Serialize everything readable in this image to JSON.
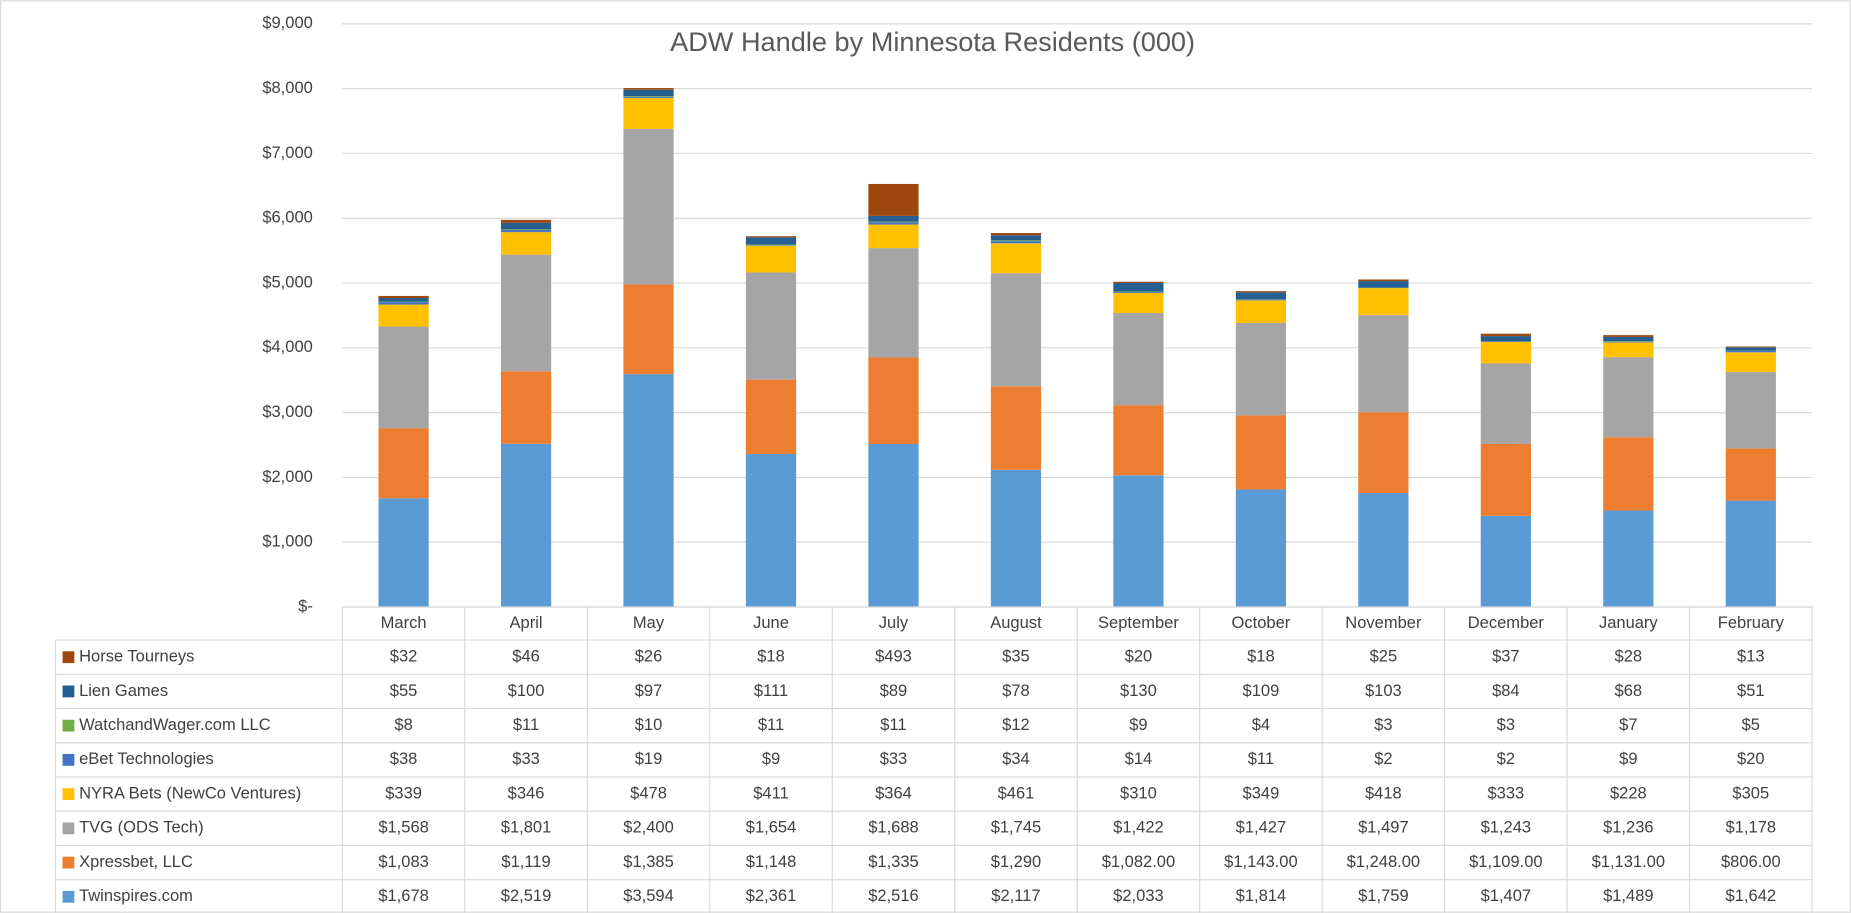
{
  "chart_data": {
    "type": "bar",
    "stacked": true,
    "title": "ADW Handle by Minnesota Residents (000)",
    "categories": [
      "March",
      "April",
      "May",
      "June",
      "July",
      "August",
      "September",
      "October",
      "November",
      "December",
      "January",
      "February"
    ],
    "ylim": [
      0,
      9000
    ],
    "yticks": [
      {
        "value": 0,
        "label": "$-"
      },
      {
        "value": 1000,
        "label": "$1,000"
      },
      {
        "value": 2000,
        "label": "$2,000"
      },
      {
        "value": 3000,
        "label": "$3,000"
      },
      {
        "value": 4000,
        "label": "$4,000"
      },
      {
        "value": 5000,
        "label": "$5,000"
      },
      {
        "value": 6000,
        "label": "$6,000"
      },
      {
        "value": 7000,
        "label": "$7,000"
      },
      {
        "value": 8000,
        "label": "$8,000"
      },
      {
        "value": 9000,
        "label": "$9,000"
      }
    ],
    "grid": true,
    "series": [
      {
        "name": "Twinspires.com",
        "color": "#5b9bd5",
        "values": [
          1678,
          2519,
          3594,
          2361,
          2516,
          2117,
          2033,
          1814,
          1759,
          1407,
          1489,
          1642
        ],
        "value_labels": [
          "$1,678",
          "$2,519",
          "$3,594",
          "$2,361",
          "$2,516",
          "$2,117",
          "$2,033",
          "$1,814",
          "$1,759",
          "$1,407",
          "$1,489",
          "$1,642"
        ]
      },
      {
        "name": "Xpressbet, LLC",
        "color": "#ed7d31",
        "values": [
          1083,
          1119,
          1385,
          1148,
          1335,
          1290,
          1082,
          1143,
          1248,
          1109,
          1131,
          806
        ],
        "value_labels": [
          "$1,083",
          "$1,119",
          "$1,385",
          "$1,148",
          "$1,335",
          "$1,290",
          "$1,082.00",
          "$1,143.00",
          "$1,248.00",
          "$1,109.00",
          "$1,131.00",
          "$806.00"
        ]
      },
      {
        "name": "TVG (ODS Tech)",
        "color": "#a5a5a5",
        "values": [
          1568,
          1801,
          2400,
          1654,
          1688,
          1745,
          1422,
          1427,
          1497,
          1243,
          1236,
          1178
        ],
        "value_labels": [
          "$1,568",
          "$1,801",
          "$2,400",
          "$1,654",
          "$1,688",
          "$1,745",
          "$1,422",
          "$1,427",
          "$1,497",
          "$1,243",
          "$1,236",
          "$1,178"
        ]
      },
      {
        "name": "NYRA Bets (NewCo Ventures)",
        "color": "#ffc000",
        "values": [
          339,
          346,
          478,
          411,
          364,
          461,
          310,
          349,
          418,
          333,
          228,
          305
        ],
        "value_labels": [
          "$339",
          "$346",
          "$478",
          "$411",
          "$364",
          "$461",
          "$310",
          "$349",
          "$418",
          "$333",
          "$228",
          "$305"
        ]
      },
      {
        "name": "eBet Technologies",
        "color": "#4472c4",
        "values": [
          38,
          33,
          19,
          9,
          33,
          34,
          14,
          11,
          2,
          2,
          9,
          20
        ],
        "value_labels": [
          "$38",
          "$33",
          "$19",
          "$9",
          "$33",
          "$34",
          "$14",
          "$11",
          "$2",
          "$2",
          "$9",
          "$20"
        ]
      },
      {
        "name": "WatchandWager.com LLC",
        "color": "#70ad47",
        "values": [
          8,
          11,
          10,
          11,
          11,
          12,
          9,
          4,
          3,
          3,
          7,
          5
        ],
        "value_labels": [
          "$8",
          "$11",
          "$10",
          "$11",
          "$11",
          "$12",
          "$9",
          "$4",
          "$3",
          "$3",
          "$7",
          "$5"
        ]
      },
      {
        "name": "Lien Games",
        "color": "#255e91",
        "values": [
          55,
          100,
          97,
          111,
          89,
          78,
          130,
          109,
          103,
          84,
          68,
          51
        ],
        "value_labels": [
          "$55",
          "$100",
          "$97",
          "$111",
          "$89",
          "$78",
          "$130",
          "$109",
          "$103",
          "$84",
          "$68",
          "$51"
        ]
      },
      {
        "name": "Horse Tourneys",
        "color": "#9e480e",
        "values": [
          32,
          46,
          26,
          18,
          493,
          35,
          20,
          18,
          25,
          37,
          28,
          13
        ],
        "value_labels": [
          "$32",
          "$46",
          "$26",
          "$18",
          "$493",
          "$35",
          "$20",
          "$18",
          "$25",
          "$37",
          "$28",
          "$13"
        ]
      }
    ]
  }
}
